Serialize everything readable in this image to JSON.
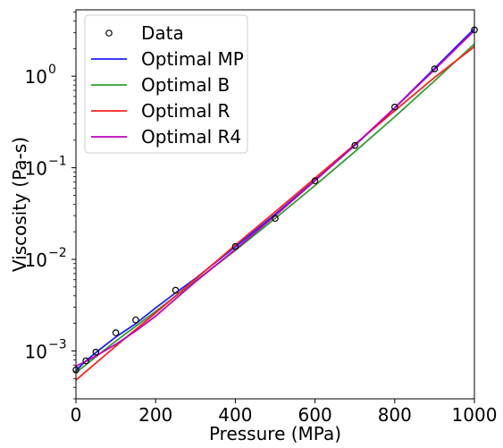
{
  "chart_data": {
    "type": "line",
    "xlabel": "Pressure (MPa)",
    "ylabel": "Viscosity (Pa-s)",
    "xlim": [
      0,
      1000
    ],
    "ylim": [
      0.0003,
      5.3
    ],
    "yscale": "log",
    "x_ticks": [
      0,
      200,
      400,
      600,
      800,
      1000
    ],
    "x_tick_labels": [
      "0",
      "200",
      "400",
      "600",
      "800",
      "1000"
    ],
    "y_ticks": [
      0.001,
      0.01,
      0.1,
      1
    ],
    "y_tick_labels": [
      {
        "base": "10",
        "exp": "−3"
      },
      {
        "base": "10",
        "exp": "−2"
      },
      {
        "base": "10",
        "exp": "−1"
      },
      {
        "base": "10",
        "exp": "0"
      }
    ],
    "legend_position": "top-left",
    "scatter": {
      "name": "Data",
      "color": "#000000",
      "x": [
        0,
        25,
        50,
        100,
        150,
        250,
        400,
        500,
        600,
        700,
        800,
        900,
        1000
      ],
      "y": [
        0.00062,
        0.00078,
        0.00097,
        0.00158,
        0.00218,
        0.0046,
        0.0138,
        0.028,
        0.072,
        0.175,
        0.46,
        1.2,
        3.2
      ]
    },
    "series": [
      {
        "name": "Optimal MP",
        "color": "#1f1fff",
        "x": [
          0,
          25,
          50,
          100,
          150,
          200,
          250,
          300,
          400,
          500,
          600,
          700,
          800,
          900,
          1000
        ],
        "y": [
          0.00061,
          0.00078,
          0.00096,
          0.00142,
          0.00198,
          0.00295,
          0.0043,
          0.0062,
          0.0137,
          0.031,
          0.073,
          0.175,
          0.45,
          1.22,
          3.3
        ]
      },
      {
        "name": "Optimal B",
        "color": "#2ca02c",
        "x": [
          0,
          100,
          200,
          300,
          400,
          500,
          600,
          700,
          800,
          900,
          1000
        ],
        "y": [
          0.00058,
          0.00128,
          0.0027,
          0.0058,
          0.0125,
          0.028,
          0.064,
          0.15,
          0.36,
          0.89,
          2.25
        ]
      },
      {
        "name": "Optimal R",
        "color": "#ff1f1f",
        "x": [
          0,
          100,
          200,
          300,
          400,
          500,
          600,
          700,
          800,
          900,
          1000
        ],
        "y": [
          0.00048,
          0.00113,
          0.0026,
          0.0061,
          0.0143,
          0.033,
          0.077,
          0.18,
          0.42,
          0.97,
          2.1
        ]
      },
      {
        "name": "Optimal R4",
        "color": "#bf00bf",
        "x": [
          0,
          25,
          50,
          100,
          150,
          200,
          250,
          300,
          400,
          500,
          600,
          700,
          800,
          900,
          1000
        ],
        "y": [
          0.00068,
          0.00077,
          0.00088,
          0.00118,
          0.00165,
          0.0024,
          0.0037,
          0.0057,
          0.0128,
          0.03,
          0.072,
          0.177,
          0.45,
          1.18,
          3.15
        ]
      }
    ]
  }
}
